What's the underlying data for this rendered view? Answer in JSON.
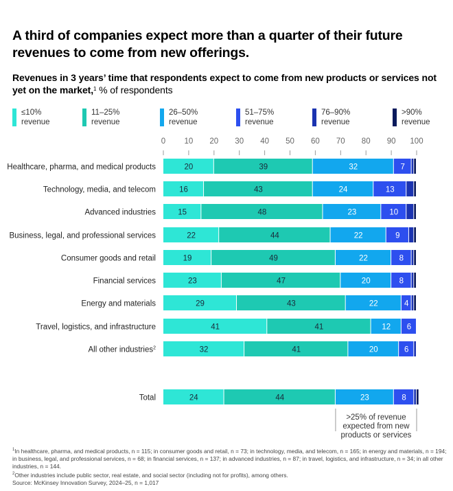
{
  "title": "A third of companies expect more than a quarter of their future revenues to come from new offerings.",
  "subtitle_bold": "Revenues in 3 years’ time that respondents expect to come from new products or services not yet on the market,",
  "subtitle_sup": "1",
  "subtitle_rest": " % of respondents",
  "legend": [
    {
      "line1": "≤10%",
      "line2": "revenue"
    },
    {
      "line1": "11–25%",
      "line2": "revenue"
    },
    {
      "line1": "26–50%",
      "line2": "revenue"
    },
    {
      "line1": "51–75%",
      "line2": "revenue"
    },
    {
      "line1": "76–90%",
      "line2": "revenue"
    },
    {
      "line1": ">90%",
      "line2": "revenue"
    }
  ],
  "chart_data": {
    "type": "bar",
    "orientation": "horizontal",
    "stacked": true,
    "title": "Revenues in 3 years’ time that respondents expect to come from new products or services not yet on the market, % of respondents",
    "xlabel": "",
    "ylabel": "",
    "xlim": [
      0,
      100
    ],
    "x_ticks": [
      "0",
      "10",
      "20",
      "30",
      "40",
      "50",
      "60",
      "70",
      "80",
      "90",
      "100"
    ],
    "grid": false,
    "legend_position": "top",
    "categories": [
      "Healthcare, pharma, and medical products",
      "Technology, media, and telecom",
      "Advanced industries",
      "Business, legal, and professional services",
      "Consumer goods and retail",
      "Financial services",
      "Energy and materials",
      "Travel, logistics, and infrastructure",
      "All other industries",
      "Total"
    ],
    "category_superscripts": [
      "",
      "",
      "",
      "",
      "",
      "",
      "",
      "",
      "2",
      ""
    ],
    "series": [
      {
        "name": "≤10% revenue",
        "color": "#2ee6d6",
        "values": [
          20,
          16,
          15,
          22,
          19,
          23,
          29,
          41,
          32,
          24
        ],
        "labels": [
          "20",
          "16",
          "15",
          "22",
          "19",
          "23",
          "29",
          "41",
          "32",
          "24"
        ]
      },
      {
        "name": "11–25% revenue",
        "color": "#1ec9b2",
        "values": [
          39,
          43,
          48,
          44,
          49,
          47,
          43,
          41,
          41,
          44
        ],
        "labels": [
          "39",
          "43",
          "48",
          "44",
          "49",
          "47",
          "43",
          "41",
          "41",
          "44"
        ]
      },
      {
        "name": "26–50% revenue",
        "color": "#12a7ee",
        "values": [
          32,
          24,
          23,
          22,
          22,
          20,
          22,
          12,
          20,
          23
        ],
        "labels": [
          "32",
          "24",
          "23",
          "22",
          "22",
          "20",
          "22",
          "12",
          "20",
          "23"
        ]
      },
      {
        "name": "51–75% revenue",
        "color": "#2d4fef",
        "values": [
          7,
          13,
          10,
          9,
          8,
          8,
          4,
          6,
          6,
          8
        ],
        "labels": [
          "7",
          "13",
          "10",
          "9",
          "8",
          "8",
          "4",
          "6",
          "6",
          "8"
        ]
      },
      {
        "name": "76–90% revenue",
        "color": "#1b33b0",
        "values": [
          1,
          3,
          3,
          2,
          1,
          1,
          1,
          0,
          1,
          1
        ],
        "labels": [
          "",
          "",
          "",
          "",
          "",
          "",
          "",
          "",
          "",
          ""
        ]
      },
      {
        "name": ">90% revenue",
        "color": "#0a1a5c",
        "values": [
          1,
          1,
          1,
          1,
          1,
          1,
          1,
          0,
          0,
          1
        ],
        "labels": [
          "",
          "",
          "",
          "",
          "",
          "",
          "",
          "",
          "",
          ""
        ]
      }
    ],
    "annotation": {
      "text_lines": [
        ">25% of revenue",
        "expected from new",
        "products or services"
      ],
      "applies_to": "Total",
      "range": [
        68,
        100
      ]
    }
  },
  "footnotes": {
    "note1_sup": "1",
    "note1": "In healthcare, pharma, and medical products, n = 115; in consumer goods and retail, n = 73; in technology, media, and telecom, n = 165; in energy and materials, n = 194; in business, legal, and professional services, n = 68; in financial services, n = 137; in advanced industries, n = 87; in travel, logistics, and infrastructure, n = 34; in all other industries, n = 144.",
    "note2_sup": "2",
    "note2": "Other industries include public sector, real estate, and social sector (including not for profits), among others.",
    "source": "Source: McKinsey Innovation Survey, 2024–25, n = 1,017"
  }
}
